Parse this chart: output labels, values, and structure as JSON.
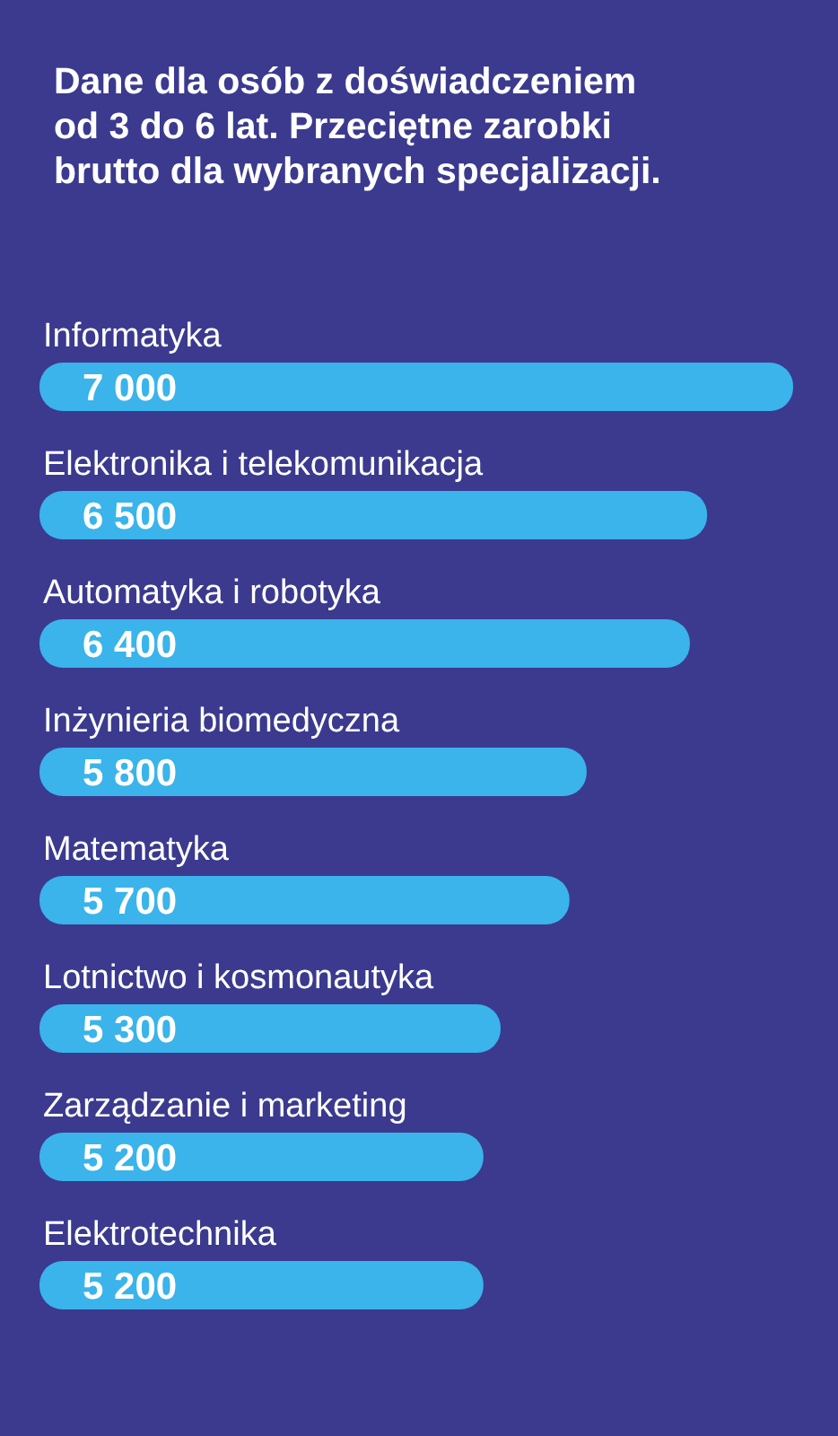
{
  "chart_data": {
    "type": "bar",
    "orientation": "horizontal",
    "title": "Dane dla osób z doświadczeniem\nod 3 do 6 lat. Przeciętne zarobki\nbrutto dla wybranych specjalizacji.",
    "categories": [
      "Informatyka",
      "Elektronika i telekomunikacja",
      "Automatyka i robotyka",
      "Inżynieria biomedyczna",
      "Matematyka",
      "Lotnictwo i kosmonautyka",
      "Zarządzanie i marketing",
      "Elektrotechnika"
    ],
    "values": [
      7000,
      6500,
      6400,
      5800,
      5700,
      5300,
      5200,
      5200
    ],
    "value_labels": [
      "7 000",
      "6 500",
      "6 400",
      "5 800",
      "5 700",
      "5 300",
      "5 200",
      "5 200"
    ],
    "color": "#3ab4ea",
    "xlim": [
      2620,
      7000
    ]
  }
}
